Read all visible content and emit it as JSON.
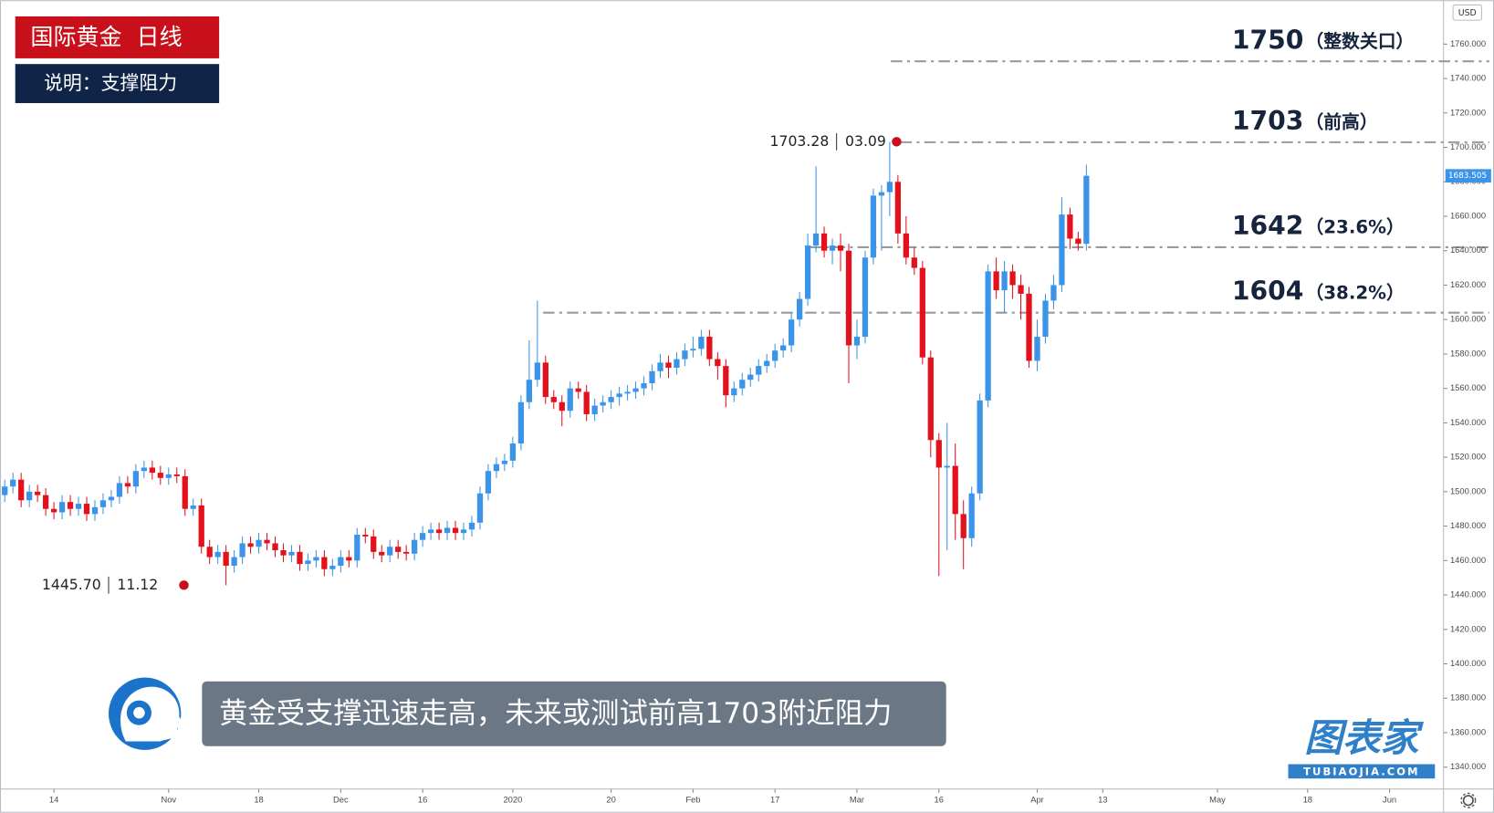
{
  "chart_data": {
    "type": "candlestick",
    "title": "国际黄金  日线",
    "subtitle": "说明：支撑阻力",
    "caption": "黄金受支撑迅速走高，未来或测试前高1703附近阻力",
    "currency": "USD",
    "brand": "图表家",
    "brand_url": "TUBIAOJIA.COM",
    "up_color": "#3b94e8",
    "down_color": "#e3111b",
    "ylim": [
      1327.3,
      1785.5
    ],
    "yticks": [
      {
        "value": 1340,
        "label": "1340.000"
      },
      {
        "value": 1360,
        "label": "1360.000"
      },
      {
        "value": 1380,
        "label": "1380.000"
      },
      {
        "value": 1400,
        "label": "1400.000"
      },
      {
        "value": 1420,
        "label": "1420.000"
      },
      {
        "value": 1440,
        "label": "1440.000"
      },
      {
        "value": 1460,
        "label": "1460.000"
      },
      {
        "value": 1480,
        "label": "1480.000"
      },
      {
        "value": 1500,
        "label": "1500.000"
      },
      {
        "value": 1520,
        "label": "1520.000"
      },
      {
        "value": 1540,
        "label": "1540.000"
      },
      {
        "value": 1560,
        "label": "1560.000"
      },
      {
        "value": 1580,
        "label": "1580.000"
      },
      {
        "value": 1600,
        "label": "1600.000"
      },
      {
        "value": 1620,
        "label": "1620.000"
      },
      {
        "value": 1640,
        "label": "1640.000"
      },
      {
        "value": 1660,
        "label": "1660.000"
      },
      {
        "value": 1680,
        "label": "1680.000"
      },
      {
        "value": 1700,
        "label": "1700.000"
      },
      {
        "value": 1720,
        "label": "1720.000"
      },
      {
        "value": 1740,
        "label": "1740.000"
      },
      {
        "value": 1760,
        "label": "1760.000"
      }
    ],
    "levels": [
      {
        "value": 1750,
        "note": "（整数关口）"
      },
      {
        "value": 1703,
        "note": "（前高）"
      },
      {
        "value": 1642,
        "note": "（23.6%）"
      },
      {
        "value": 1604,
        "note": "（38.2%）"
      }
    ],
    "annotations": [
      {
        "value": 1703.28,
        "label": "1703.28",
        "date": "03.09"
      },
      {
        "value": 1445.7,
        "label": "1445.70",
        "date": "11.12"
      }
    ],
    "categories": [
      null,
      null,
      null,
      null,
      null,
      null,
      "14",
      null,
      null,
      null,
      null,
      null,
      null,
      null,
      null,
      null,
      null,
      null,
      null,
      null,
      "Nov",
      null,
      null,
      null,
      null,
      null,
      null,
      null,
      null,
      null,
      null,
      "18",
      null,
      null,
      null,
      null,
      null,
      null,
      null,
      null,
      null,
      "Dec",
      null,
      null,
      null,
      null,
      null,
      null,
      null,
      null,
      null,
      "16",
      null,
      null,
      null,
      null,
      null,
      null,
      null,
      null,
      null,
      null,
      "2020",
      null,
      null,
      null,
      null,
      null,
      null,
      null,
      null,
      null,
      null,
      null,
      "20",
      null,
      null,
      null,
      null,
      null,
      null,
      null,
      null,
      null,
      "Feb",
      null,
      null,
      null,
      null,
      null,
      null,
      null,
      null,
      null,
      "17",
      null,
      null,
      null,
      null,
      null,
      null,
      null,
      null,
      null,
      "Mar",
      null,
      null,
      null,
      null,
      null,
      null,
      null,
      null,
      null,
      "16",
      null,
      null,
      null,
      null,
      null,
      null,
      null,
      null,
      null,
      null,
      null,
      "Apr",
      null,
      null,
      null,
      null,
      null,
      null,
      null,
      "13",
      null,
      null,
      null,
      null,
      null,
      null,
      null,
      null,
      null,
      null,
      null,
      null,
      null,
      "May",
      null,
      null,
      null,
      null,
      null,
      null,
      null,
      null,
      null,
      null,
      "18",
      null,
      null,
      null,
      null,
      null,
      null,
      null,
      null,
      null,
      "Jun"
    ],
    "open": [
      1498,
      1503,
      1507,
      1495,
      1500,
      1498,
      1490,
      1488,
      1494,
      1490,
      1493,
      1487,
      1491,
      1495,
      1497,
      1505,
      1503,
      1512,
      1514,
      1511,
      1508,
      1510,
      1509,
      1490,
      1492,
      1468,
      1462,
      1465,
      1457,
      1462,
      1470,
      1468,
      1472,
      1470,
      1466,
      1463,
      1465,
      1458,
      1460,
      1462,
      1455,
      1457,
      1462,
      1460,
      1475,
      1474,
      1465,
      1463,
      1468,
      1465,
      1464,
      1472,
      1476,
      1478,
      1476,
      1479,
      1476,
      1478,
      1482,
      1499,
      1512,
      1516,
      1518,
      1528,
      1552,
      1565,
      1575,
      1555,
      1552,
      1547,
      1560,
      1558,
      1545,
      1550,
      1552,
      1555,
      1557,
      1558,
      1560,
      1563,
      1570,
      1575,
      1572,
      1577,
      1582,
      1583,
      1590,
      1577,
      1573,
      1556,
      1560,
      1565,
      1568,
      1573,
      1576,
      1582,
      1585,
      1600,
      1612,
      1643,
      1650,
      1640,
      1643,
      1640,
      1585,
      1590,
      1636,
      1672,
      1674,
      1680,
      1650,
      1636,
      1630,
      1578,
      1530,
      1514,
      1515,
      1487,
      1473,
      1499,
      1553,
      1628,
      1617,
      1628,
      1620,
      1615,
      1576,
      1590,
      1611,
      1620,
      1661,
      1647,
      1644,
      null,
      null,
      null,
      null,
      null,
      null,
      null,
      null,
      null,
      null,
      null,
      null,
      null,
      null,
      null,
      null,
      null,
      null,
      null,
      null,
      null,
      null,
      null,
      null,
      null,
      null,
      null,
      null,
      null,
      null,
      null,
      null,
      null,
      null,
      null,
      null,
      null
    ],
    "high": [
      1507,
      1511,
      1511,
      1504,
      1504,
      1502,
      1494,
      1498,
      1498,
      1497,
      1497,
      1495,
      1499,
      1501,
      1509,
      1509,
      1516,
      1518,
      1518,
      1515,
      1514,
      1514,
      1513,
      1496,
      1496,
      1472,
      1469,
      1469,
      1466,
      1474,
      1474,
      1476,
      1476,
      1474,
      1470,
      1469,
      1469,
      1464,
      1466,
      1466,
      1461,
      1466,
      1466,
      1479,
      1479,
      1478,
      1469,
      1472,
      1472,
      1469,
      1476,
      1480,
      1482,
      1482,
      1483,
      1483,
      1482,
      1486,
      1503,
      1516,
      1520,
      1522,
      1532,
      1556,
      1588,
      1611,
      1579,
      1559,
      1556,
      1564,
      1564,
      1562,
      1554,
      1556,
      1559,
      1561,
      1562,
      1564,
      1567,
      1574,
      1580,
      1579,
      1581,
      1586,
      1590,
      1594,
      1594,
      1581,
      1577,
      1564,
      1569,
      1572,
      1577,
      1580,
      1586,
      1589,
      1604,
      1616,
      1650,
      1689,
      1654,
      1647,
      1650,
      1644,
      1600,
      1640,
      1676,
      1678,
      1703.28,
      1684,
      1660,
      1642,
      1634,
      1582,
      1534,
      1540,
      1528,
      1495,
      1503,
      1557,
      1632,
      1636,
      1634,
      1632,
      1626,
      1619,
      1600,
      1615,
      1626,
      1671,
      1665,
      1651,
      1690,
      null,
      null,
      null,
      null,
      null,
      null,
      null,
      null,
      null,
      null,
      null,
      null,
      null,
      null,
      null,
      null,
      null,
      null,
      null,
      null,
      null,
      null,
      null,
      null,
      null,
      null,
      null,
      null,
      null,
      null,
      null,
      null,
      null,
      null,
      null,
      null,
      null
    ],
    "low": [
      1494,
      1499,
      1491,
      1491,
      1494,
      1486,
      1484,
      1484,
      1486,
      1486,
      1483,
      1483,
      1487,
      1491,
      1493,
      1499,
      1499,
      1508,
      1507,
      1504,
      1504,
      1505,
      1486,
      1486,
      1464,
      1458,
      1458,
      1445.7,
      1453,
      1458,
      1464,
      1464,
      1466,
      1462,
      1459,
      1459,
      1454,
      1454,
      1456,
      1451,
      1451,
      1453,
      1456,
      1456,
      1470,
      1461,
      1459,
      1459,
      1461,
      1460,
      1460,
      1468,
      1472,
      1472,
      1472,
      1472,
      1472,
      1474,
      1478,
      1495,
      1508,
      1512,
      1514,
      1524,
      1548,
      1561,
      1551,
      1548,
      1538,
      1543,
      1554,
      1541,
      1541,
      1546,
      1548,
      1550,
      1553,
      1554,
      1556,
      1559,
      1566,
      1566,
      1568,
      1573,
      1578,
      1579,
      1573,
      1565,
      1549,
      1552,
      1556,
      1561,
      1564,
      1569,
      1572,
      1578,
      1581,
      1596,
      1608,
      1639,
      1636,
      1632,
      1628,
      1563,
      1577,
      1586,
      1632,
      1640,
      1660,
      1644,
      1632,
      1626,
      1574,
      1520,
      1451,
      1466,
      1472,
      1455,
      1468,
      1495,
      1549,
      1612,
      1604,
      1612,
      1600,
      1572,
      1570,
      1586,
      1606,
      1616,
      1641,
      1640,
      1640,
      null,
      null,
      null,
      null,
      null,
      null,
      null,
      null,
      null,
      null,
      null,
      null,
      null,
      null,
      null,
      null,
      null,
      null,
      null,
      null,
      null,
      null,
      null,
      null,
      null,
      null,
      null,
      null,
      null,
      null,
      null,
      null,
      null,
      null,
      null,
      null,
      null
    ],
    "close": [
      1503,
      1507,
      1495,
      1500,
      1498,
      1490,
      1488,
      1494,
      1490,
      1493,
      1487,
      1491,
      1495,
      1497,
      1505,
      1503,
      1512,
      1514,
      1511,
      1508,
      1510,
      1509,
      1490,
      1492,
      1468,
      1462,
      1465,
      1457,
      1462,
      1470,
      1468,
      1472,
      1470,
      1466,
      1463,
      1465,
      1458,
      1460,
      1462,
      1455,
      1457,
      1462,
      1460,
      1475,
      1474,
      1465,
      1463,
      1468,
      1465,
      1464,
      1472,
      1476,
      1478,
      1476,
      1479,
      1476,
      1478,
      1482,
      1499,
      1512,
      1516,
      1518,
      1528,
      1552,
      1565,
      1575,
      1555,
      1552,
      1547,
      1560,
      1558,
      1545,
      1550,
      1552,
      1555,
      1557,
      1558,
      1560,
      1563,
      1570,
      1575,
      1572,
      1577,
      1582,
      1583,
      1590,
      1577,
      1573,
      1556,
      1560,
      1565,
      1568,
      1573,
      1576,
      1582,
      1585,
      1600,
      1612,
      1643,
      1650,
      1640,
      1643,
      1640,
      1585,
      1590,
      1636,
      1672,
      1674,
      1680,
      1650,
      1636,
      1630,
      1578,
      1530,
      1514,
      1515,
      1487,
      1473,
      1499,
      1553,
      1628,
      1617,
      1628,
      1620,
      1615,
      1576,
      1590,
      1611,
      1620,
      1661,
      1647,
      1644,
      1683.505,
      null,
      null,
      null,
      null,
      null,
      null,
      null,
      null,
      null,
      null,
      null,
      null,
      null,
      null,
      null,
      null,
      null,
      null,
      null,
      null,
      null,
      null,
      null,
      null,
      null,
      null,
      null,
      null,
      null,
      null,
      null,
      null,
      null,
      null,
      null,
      null,
      null
    ]
  }
}
